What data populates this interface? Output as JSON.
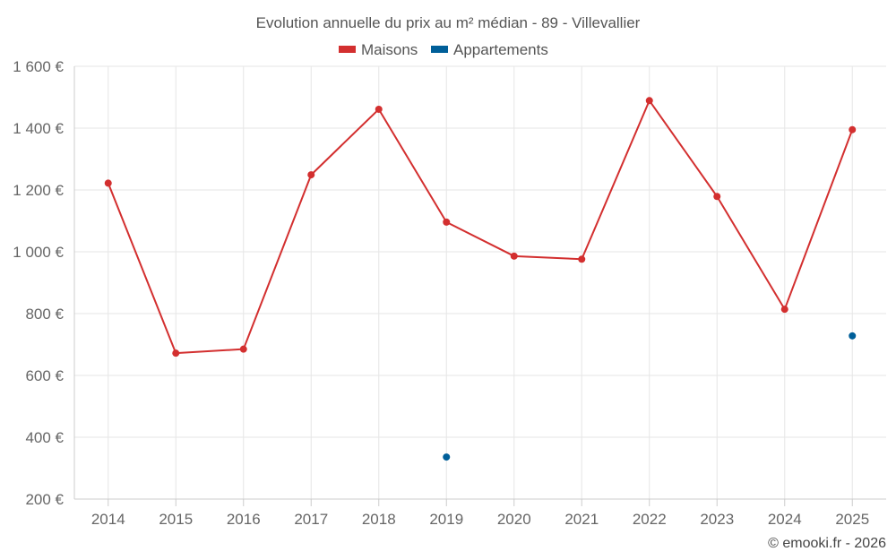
{
  "chart_data": {
    "type": "line",
    "title": "Evolution annuelle du prix au m² médian - 89 - Villevallier",
    "categories": [
      "2014",
      "2015",
      "2016",
      "2017",
      "2018",
      "2019",
      "2020",
      "2021",
      "2022",
      "2023",
      "2024",
      "2025"
    ],
    "series": [
      {
        "name": "Maisons",
        "color": "#d32f2f",
        "style": "line-with-markers",
        "values": [
          1222,
          672,
          685,
          1249,
          1461,
          1096,
          986,
          976,
          1489,
          1179,
          814,
          1395
        ]
      },
      {
        "name": "Appartements",
        "color": "#005f99",
        "style": "markers-only",
        "values": [
          null,
          null,
          null,
          null,
          null,
          336,
          null,
          null,
          null,
          null,
          null,
          728
        ]
      }
    ],
    "ylim": [
      200,
      1600
    ],
    "yticks": [
      200,
      400,
      600,
      800,
      1000,
      1200,
      1400,
      1600
    ],
    "ytick_labels": [
      "200 €",
      "400 €",
      "600 €",
      "800 €",
      "1 000 €",
      "1 200 €",
      "1 400 €",
      "1 600 €"
    ],
    "xlabel": "",
    "ylabel": "",
    "grid": true,
    "legend_position": "top-center"
  },
  "credit": "© emooki.fr - 2026"
}
